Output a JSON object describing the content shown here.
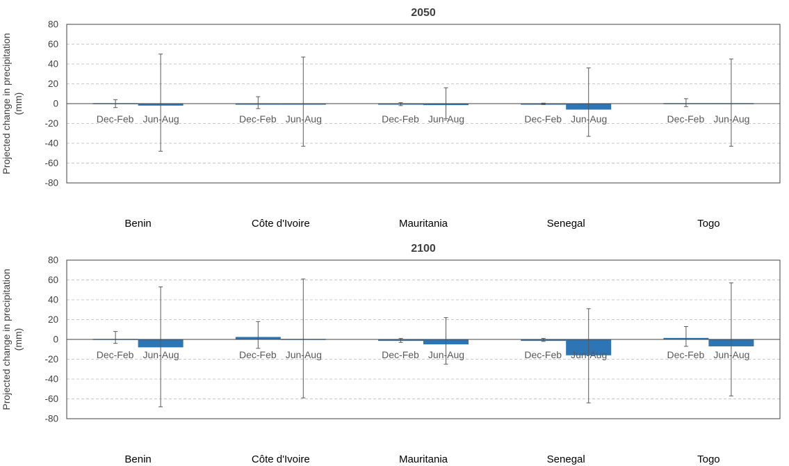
{
  "chart_data": [
    {
      "type": "bar",
      "title": "2050",
      "ylabel": "Projected change in precipitation (mm)",
      "ylim": [
        -80,
        80
      ],
      "yticks": [
        80,
        60,
        40,
        20,
        0,
        -20,
        -40,
        -60,
        -80
      ],
      "grid": true,
      "countries": [
        "Benin",
        "Côte d'Ivoire",
        "Mauritania",
        "Senegal",
        "Togo"
      ],
      "season_labels": [
        "Dec-Feb",
        "Jun-Aug"
      ],
      "bar_color": "#2E75B6",
      "series": [
        {
          "values": [
            0.5,
            0,
            -0.5,
            -0.5,
            0.5
          ],
          "error": [
            [
              -4,
              4
            ],
            [
              -5,
              7
            ],
            [
              -2,
              1
            ],
            [
              -1,
              0.5
            ],
            [
              -3,
              5
            ]
          ]
        },
        {
          "values": [
            -2,
            0,
            -1.5,
            -6,
            0.5
          ],
          "error": [
            [
              -48,
              50
            ],
            [
              -43,
              47
            ],
            [
              -15,
              16
            ],
            [
              -33,
              36
            ],
            [
              -43,
              45
            ]
          ]
        }
      ]
    },
    {
      "type": "bar",
      "title": "2100",
      "ylabel": "Projected change in precipitation (mm)",
      "ylim": [
        -80,
        80
      ],
      "yticks": [
        80,
        60,
        40,
        20,
        0,
        -20,
        -40,
        -60,
        -80
      ],
      "grid": true,
      "countries": [
        "Benin",
        "Côte d'Ivoire",
        "Mauritania",
        "Senegal",
        "Togo"
      ],
      "season_labels": [
        "Dec-Feb",
        "Jun-Aug"
      ],
      "bar_color": "#2E75B6",
      "series": [
        {
          "values": [
            0.5,
            2.5,
            -1.5,
            -1.5,
            1.5
          ],
          "error": [
            [
              -4,
              8
            ],
            [
              -9,
              18
            ],
            [
              -3,
              1
            ],
            [
              -2,
              1
            ],
            [
              -7,
              13
            ]
          ]
        },
        {
          "values": [
            -8,
            0.5,
            -5,
            -16,
            -7
          ],
          "error": [
            [
              -68,
              53
            ],
            [
              -59,
              61
            ],
            [
              -25,
              22
            ],
            [
              -64,
              31
            ],
            [
              -57,
              57
            ]
          ]
        }
      ]
    }
  ]
}
